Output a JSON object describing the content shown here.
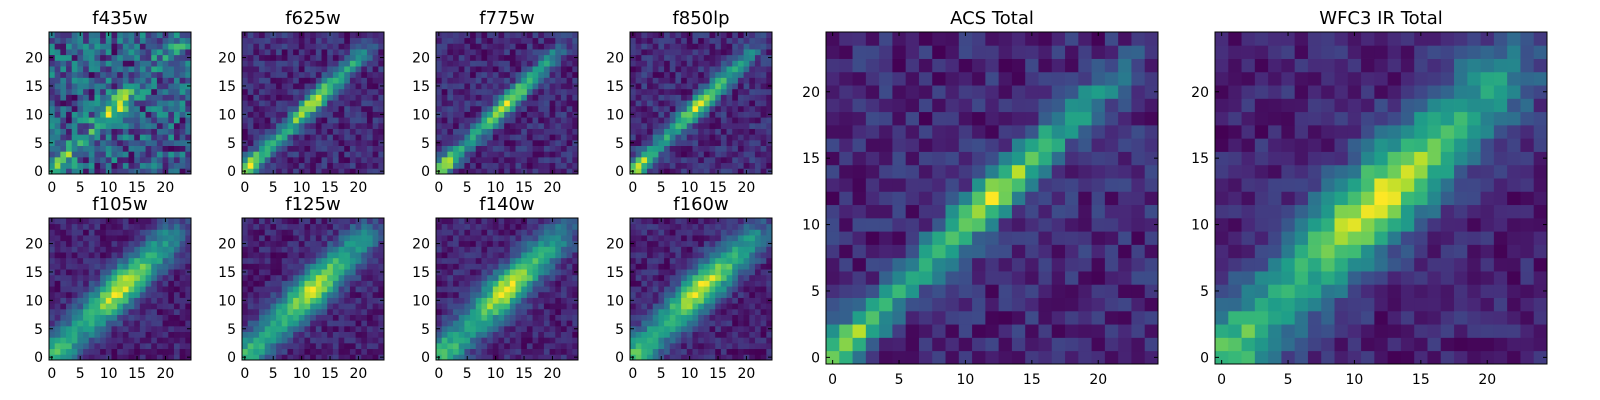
{
  "figure": {
    "type": "heatmap-grid",
    "colormap": "viridis"
  },
  "chart_data": [
    {
      "type": "heatmap",
      "title": "f435w",
      "profile": "noisy",
      "seed": 11,
      "grid_size": 25,
      "xlim": [
        0,
        24
      ],
      "ylim": [
        0,
        24
      ],
      "xticks": [
        0,
        5,
        10,
        15,
        20
      ],
      "yticks": [
        0,
        5,
        10,
        15,
        20
      ]
    },
    {
      "type": "heatmap",
      "title": "f625w",
      "profile": "diagonal",
      "seed": 23,
      "grid_size": 25,
      "xlim": [
        0,
        24
      ],
      "ylim": [
        0,
        24
      ],
      "xticks": [
        0,
        5,
        10,
        15,
        20
      ],
      "yticks": [
        0,
        5,
        10,
        15,
        20
      ]
    },
    {
      "type": "heatmap",
      "title": "f775w",
      "profile": "diagonal",
      "seed": 37,
      "grid_size": 25,
      "xlim": [
        0,
        24
      ],
      "ylim": [
        0,
        24
      ],
      "xticks": [
        0,
        5,
        10,
        15,
        20
      ],
      "yticks": [
        0,
        5,
        10,
        15,
        20
      ]
    },
    {
      "type": "heatmap",
      "title": "f850lp",
      "profile": "diagonal",
      "seed": 41,
      "grid_size": 25,
      "xlim": [
        0,
        24
      ],
      "ylim": [
        0,
        24
      ],
      "xticks": [
        0,
        5,
        10,
        15,
        20
      ],
      "yticks": [
        0,
        5,
        10,
        15,
        20
      ]
    },
    {
      "type": "heatmap",
      "title": "f105w",
      "profile": "broad",
      "seed": 53,
      "grid_size": 25,
      "xlim": [
        0,
        24
      ],
      "ylim": [
        0,
        24
      ],
      "xticks": [
        0,
        5,
        10,
        15,
        20
      ],
      "yticks": [
        0,
        5,
        10,
        15,
        20
      ]
    },
    {
      "type": "heatmap",
      "title": "f125w",
      "profile": "broad",
      "seed": 67,
      "grid_size": 25,
      "xlim": [
        0,
        24
      ],
      "ylim": [
        0,
        24
      ],
      "xticks": [
        0,
        5,
        10,
        15,
        20
      ],
      "yticks": [
        0,
        5,
        10,
        15,
        20
      ]
    },
    {
      "type": "heatmap",
      "title": "f140w",
      "profile": "broad",
      "seed": 71,
      "grid_size": 25,
      "xlim": [
        0,
        24
      ],
      "ylim": [
        0,
        24
      ],
      "xticks": [
        0,
        5,
        10,
        15,
        20
      ],
      "yticks": [
        0,
        5,
        10,
        15,
        20
      ]
    },
    {
      "type": "heatmap",
      "title": "f160w",
      "profile": "broad",
      "seed": 83,
      "grid_size": 25,
      "xlim": [
        0,
        24
      ],
      "ylim": [
        0,
        24
      ],
      "xticks": [
        0,
        5,
        10,
        15,
        20
      ],
      "yticks": [
        0,
        5,
        10,
        15,
        20
      ]
    },
    {
      "type": "heatmap",
      "title": "ACS Total",
      "profile": "diagonal",
      "seed": 97,
      "grid_size": 25,
      "xlim": [
        0,
        24
      ],
      "ylim": [
        0,
        24
      ],
      "xticks": [
        0,
        10,
        20
      ],
      "xticks_visible": [
        0,
        5,
        10,
        15,
        20
      ],
      "yticks": [
        0,
        5,
        10,
        15,
        20
      ]
    },
    {
      "type": "heatmap",
      "title": "WFC3 IR Total",
      "profile": "broad",
      "seed": 101,
      "grid_size": 25,
      "xlim": [
        0,
        24
      ],
      "ylim": [
        0,
        24
      ],
      "xticks": [
        0,
        5,
        10,
        15,
        20
      ],
      "yticks": [
        0,
        5,
        10,
        15,
        20
      ]
    }
  ]
}
